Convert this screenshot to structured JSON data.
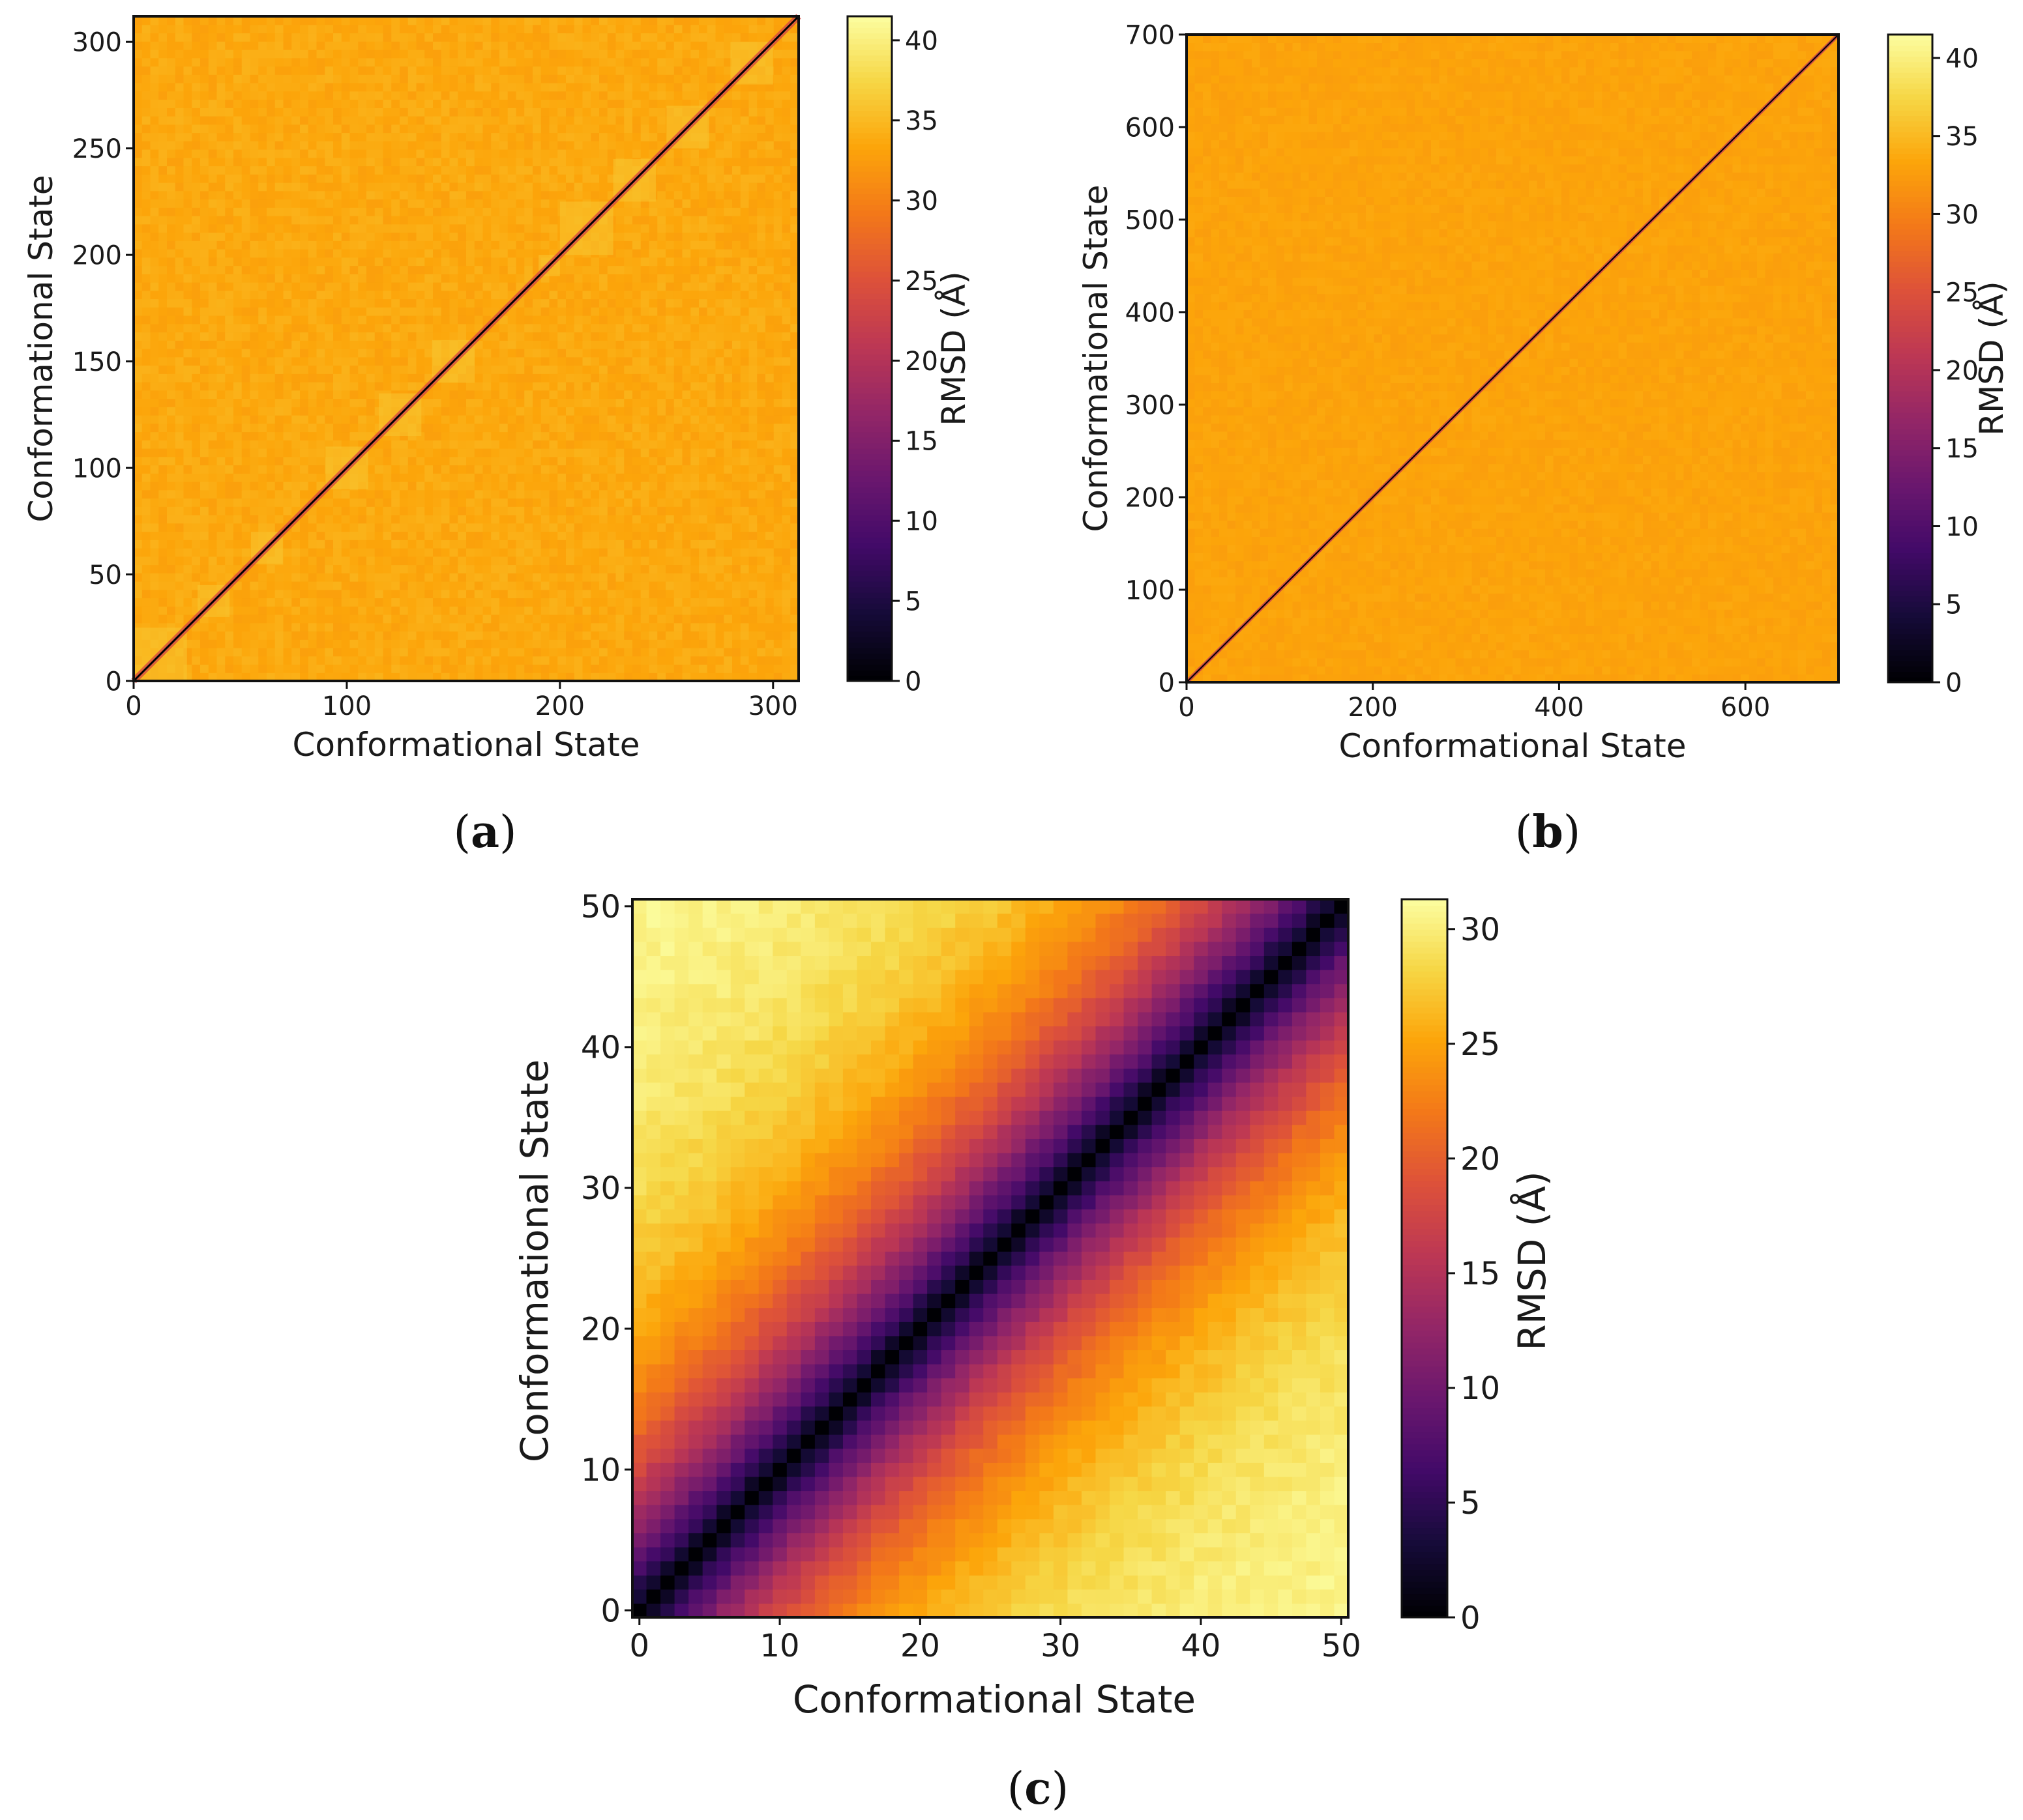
{
  "chart_data": [
    {
      "type": "heatmap",
      "id": "a",
      "caption": "(a)",
      "caption_letter": "a",
      "xlabel": "Conformational State",
      "ylabel": "Conformational State",
      "x_range": [
        0,
        312
      ],
      "y_range": [
        0,
        312
      ],
      "x_ticks": [
        0,
        100,
        200,
        300
      ],
      "y_ticks": [
        0,
        50,
        100,
        150,
        200,
        250,
        300
      ],
      "colorbar_label": "RMSD (Å)",
      "colorbar_range": [
        0,
        41.5
      ],
      "colorbar_ticks": [
        0,
        5,
        10,
        15,
        20,
        25,
        30,
        35,
        40
      ],
      "colormap": "inferno",
      "pattern": {
        "background_rmsd": 33.5,
        "diagonal_rmsd": 0,
        "note": "near-uniform orange matrix with black diagonal and small block structure along diagonal",
        "diagonal_blocks": [
          [
            0,
            25
          ],
          [
            30,
            45
          ],
          [
            55,
            70
          ],
          [
            90,
            110
          ],
          [
            115,
            135
          ],
          [
            140,
            160
          ],
          [
            190,
            200
          ],
          [
            200,
            225
          ],
          [
            225,
            245
          ],
          [
            250,
            270
          ],
          [
            280,
            300
          ]
        ]
      }
    },
    {
      "type": "heatmap",
      "id": "b",
      "caption": "(b)",
      "caption_letter": "b",
      "xlabel": "Conformational State",
      "ylabel": "Conformational State",
      "x_range": [
        0,
        700
      ],
      "y_range": [
        0,
        700
      ],
      "x_ticks": [
        0,
        200,
        400,
        600
      ],
      "y_ticks": [
        0,
        100,
        200,
        300,
        400,
        500,
        600,
        700
      ],
      "colorbar_label": "RMSD (Å)",
      "colorbar_range": [
        0,
        41.5
      ],
      "colorbar_ticks": [
        0,
        5,
        10,
        15,
        20,
        25,
        30,
        35,
        40
      ],
      "colormap": "inferno",
      "pattern": {
        "background_rmsd": 33,
        "diagonal_rmsd": 0,
        "note": "uniform orange matrix with thin dark diagonal"
      }
    },
    {
      "type": "heatmap",
      "id": "c",
      "caption": "(c)",
      "caption_letter": "c",
      "xlabel": "Conformational State",
      "ylabel": "Conformational State",
      "x_range": [
        0,
        50
      ],
      "y_range": [
        0,
        50
      ],
      "x_ticks": [
        0,
        10,
        20,
        30,
        40,
        50
      ],
      "y_ticks": [
        0,
        10,
        20,
        30,
        40,
        50
      ],
      "n_states": 51,
      "colorbar_label": "RMSD (Å)",
      "colorbar_range": [
        0,
        31.3
      ],
      "colorbar_ticks": [
        0,
        5,
        10,
        15,
        20,
        25,
        30
      ],
      "colormap": "inferno",
      "pattern": {
        "model": "rmsd(i,j) = 31 * (1 - exp(-|i-j| / 12)) approximately",
        "diagonal_rmsd": 0,
        "max_rmsd": 31,
        "note": "symmetric; rises smoothly from black diagonal to pale yellow in the far corners"
      }
    }
  ]
}
